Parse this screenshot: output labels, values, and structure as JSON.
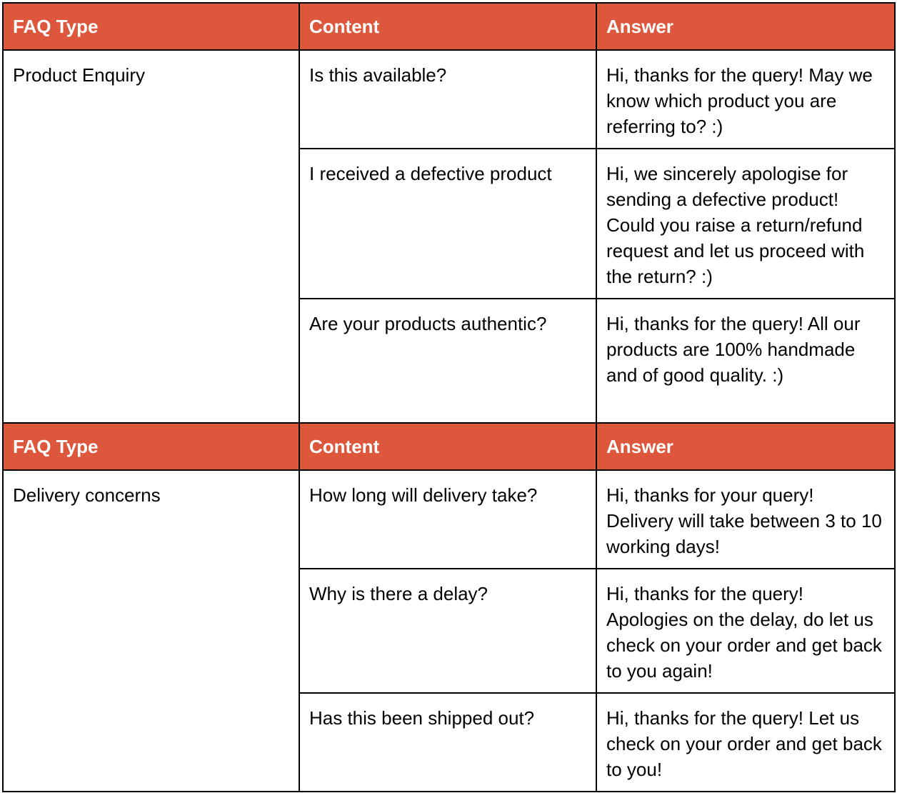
{
  "header_color": "#DD573C",
  "sections": [
    {
      "headers": [
        "FAQ Type",
        "Content",
        "Answer"
      ],
      "type": "Product Enquiry",
      "rows": [
        {
          "content": "Is this available?",
          "answer": "Hi, thanks for the query! May we know which product you are referring to? :)"
        },
        {
          "content": "I received a defective product",
          "answer": "Hi, we sincerely apologise for sending a defective product! Could you raise a return/refund request and let us proceed with the return? :)"
        },
        {
          "content": "Are your products authentic?",
          "answer": "Hi, thanks for the query! All our products are 100% handmade and of good quality. :)"
        }
      ]
    },
    {
      "headers": [
        "FAQ Type",
        "Content",
        "Answer"
      ],
      "type": "Delivery concerns",
      "rows": [
        {
          "content": "How long will delivery take?",
          "answer": "Hi, thanks for your query! Delivery will take between 3 to 10 working days!"
        },
        {
          "content": "Why is there a delay?",
          "answer": "Hi, thanks for the query! Apologies on the delay, do let us check on your order and get back to you again!"
        },
        {
          "content": "Has this been shipped out?",
          "answer": "Hi, thanks for the query! Let us check on your order and get back to you!"
        }
      ]
    }
  ]
}
